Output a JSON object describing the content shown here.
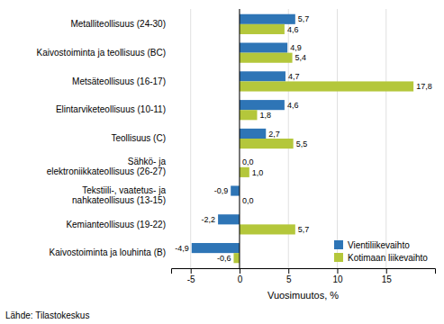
{
  "chart_data": {
    "type": "bar",
    "orientation": "horizontal",
    "categories": [
      "Metalliteollisuus (24-30)",
      "Kaivostoiminta ja teollisuus (BC)",
      "Metsäteollisuus (16-17)",
      "Elintarviketeollisuus (10-11)",
      "Teollisuus (C)",
      "Sähkö- ja\nelektroniikkateollisuus (26-27)",
      "Tekstiili-, vaatetus- ja\nnahkateollisuus (13-15)",
      "Kemianteollisuus (19-22)",
      "Kaivostoiminta ja louhinta (B)"
    ],
    "series": [
      {
        "name": "Vientiliikevaihto",
        "color": "#2e75b6",
        "values": [
          5.7,
          4.9,
          4.7,
          4.6,
          2.7,
          0.0,
          -0.9,
          -2.2,
          -4.9
        ],
        "value_labels": [
          "5,7",
          "4,9",
          "4,7",
          "4,6",
          "2,7",
          "0,0",
          "-0,9",
          "-2,2",
          "-4,9"
        ]
      },
      {
        "name": "Kotimaan liikevaihto",
        "color": "#b4c73b",
        "values": [
          4.6,
          5.4,
          17.8,
          1.8,
          5.5,
          1.0,
          0.0,
          5.7,
          -0.6
        ],
        "value_labels": [
          "4,6",
          "5,4",
          "17,8",
          "1,8",
          "5,5",
          "1,0",
          "0,0",
          "5,7",
          "-0,6"
        ]
      }
    ],
    "x_label": "Vuosimuutos, %",
    "xlim": [
      -7,
      20
    ],
    "xticks": [
      -5,
      0,
      5,
      10,
      15
    ],
    "grid": true,
    "legend": "lower right",
    "data_labels": true,
    "annotations": [
      "Lähde: Tilastokeskus"
    ]
  }
}
